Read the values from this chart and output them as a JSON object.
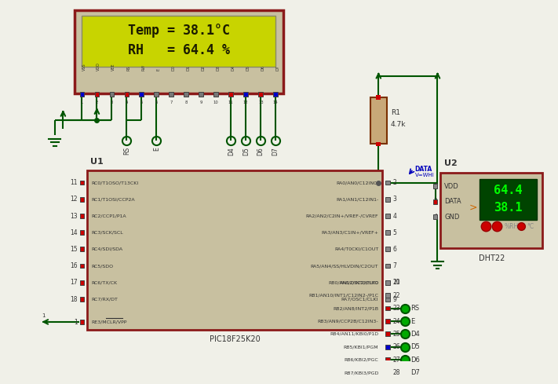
{
  "lcd_text_line1": "Temp = 38.1°C",
  "lcd_text_line2": "RH   = 64.4 %",
  "lcd_bg": "#c8d400",
  "lcd_text_color": "#1a1a00",
  "lcd_border_color": "#8b1a1a",
  "lcd_outer_color": "#c8c0a0",
  "dht22_display_rh": "64.4",
  "dht22_display_temp": "38.1",
  "dht22_bg": "#c8c0a0",
  "dht22_border": "#8b1a1a",
  "dht22_screen_bg": "#004400",
  "dht22_screen_text": "#00ff00",
  "pic_bg": "#c8c0a0",
  "pic_border": "#8b1a1a",
  "resistor_color": "#c8a878",
  "wire_color": "#005500",
  "bg_color": "#f0f0e8",
  "u1_label": "U1",
  "u2_label": "U2",
  "u1_bottom_label": "PIC18F25K20",
  "u2_bottom_label": "DHT22",
  "r1_label_top": "R1",
  "r1_label_bot": "4.7k",
  "pic_left_pins": [
    "RC0/T1OSO/T13CKI",
    "RC1/T1OSI/CCP2A",
    "RC2/CCP1/P1A",
    "RC3/SCK/SCL",
    "RC4/SDI/SDA",
    "RC5/SDO",
    "RC6/TX/CK",
    "RC7/RX/DT"
  ],
  "pic_right_pins_top": [
    "RA0/AN0/C12IN0-",
    "RA1/AN1/C12IN1-",
    "RA2/AN2/C2IN+/VREF-/CVREF",
    "RA3/AN3/C1IN+/VREF+",
    "RA4/T0CKI/C1OUT",
    "RA5/AN4/SS/HLVDIN/C2OUT",
    "RA6/OSC2/CLKO",
    "RA7/OSC1/CLKI"
  ],
  "pic_right_pins_bottom": [
    "RB0/AN12/INT0/FLT0",
    "RB1/AN10/INT1/C12IN2-/P1C",
    "RB2/AN8/INT2/P1B",
    "RB3/AN9/CCP2B/C12IN3-",
    "RB4/AN11/KBI0/P1D",
    "RB5/KBI1/PGM",
    "RB6/KBI2/PGC",
    "RB7/KBI3/PGD"
  ],
  "pic_right_pin_nums_top": [
    2,
    3,
    4,
    5,
    6,
    7,
    10,
    9
  ],
  "pic_right_pin_nums_bottom": [
    21,
    22,
    23,
    24,
    25,
    26,
    27,
    28
  ],
  "pic_left_pin_nums": [
    11,
    12,
    13,
    14,
    15,
    16,
    17,
    18
  ],
  "rb_output_labels": [
    "RS",
    "E",
    "D4",
    "D5",
    "D6",
    "D7"
  ],
  "lcd_pin_labels": [
    "VSS",
    "VDD",
    "VEE",
    "RS",
    "RW",
    "E",
    "D0",
    "D1",
    "D2",
    "D3",
    "D4",
    "D5",
    "D6",
    "D7"
  ]
}
